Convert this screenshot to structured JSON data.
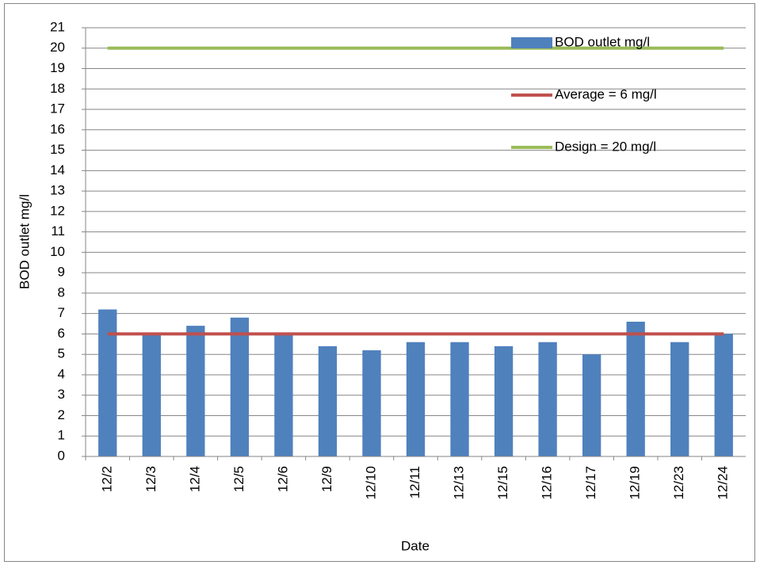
{
  "chart_data": {
    "type": "bar",
    "x_label": "Date",
    "y_label": "BOD outlet mg/l",
    "categories": [
      "12/2",
      "12/3",
      "12/4",
      "12/5",
      "12/6",
      "12/9",
      "12/10",
      "12/11",
      "12/13",
      "12/15",
      "12/16",
      "12/17",
      "12/19",
      "12/23",
      "12/24"
    ],
    "series": [
      {
        "name": "BOD outlet mg/l",
        "type": "bar",
        "color": "#4f81bd",
        "values": [
          7.2,
          6.0,
          6.4,
          6.8,
          6.0,
          5.4,
          5.2,
          5.6,
          5.6,
          5.4,
          5.6,
          5.0,
          6.6,
          5.6,
          6.0
        ]
      },
      {
        "name": "Average = 6 mg/l",
        "type": "line",
        "color": "#c0504d",
        "values": [
          6,
          6,
          6,
          6,
          6,
          6,
          6,
          6,
          6,
          6,
          6,
          6,
          6,
          6,
          6
        ]
      },
      {
        "name": "Design = 20 mg/l",
        "type": "line",
        "color": "#9bbb59",
        "values": [
          20,
          20,
          20,
          20,
          20,
          20,
          20,
          20,
          20,
          20,
          20,
          20,
          20,
          20,
          20
        ]
      }
    ],
    "ylim": [
      0,
      21
    ],
    "yticks": [
      0,
      1,
      2,
      3,
      4,
      5,
      6,
      7,
      8,
      9,
      10,
      11,
      12,
      13,
      14,
      15,
      16,
      17,
      18,
      19,
      20,
      21
    ],
    "grid": true,
    "legend": "top-right"
  }
}
